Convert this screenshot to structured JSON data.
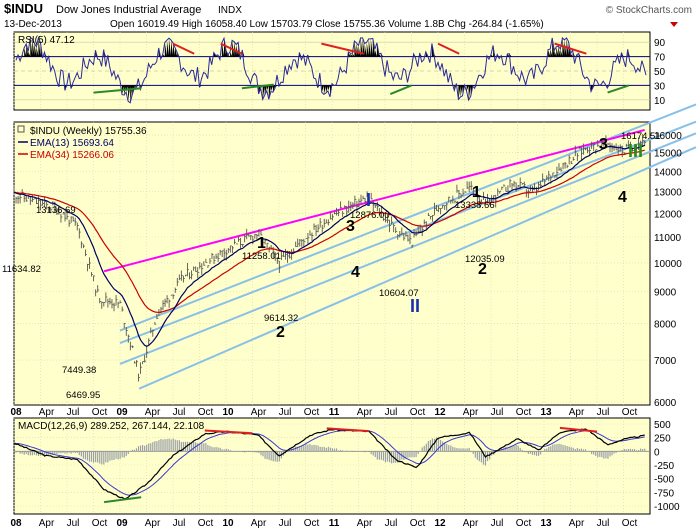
{
  "header": {
    "symbol": "$INDU",
    "name": "Dow Jones Industrial Average",
    "exchange": "INDX",
    "date": "13-Dec-2013",
    "quote": "Open 16019.49  High 16058.40  Low 15703.79  Close 15755.36  Volume 1.8B  Chg -264.84 (-1.65%)",
    "watermark": "© StockCharts.com"
  },
  "colors": {
    "panel_bg": "#ffffcc",
    "price": "#555555",
    "ema13": "#000066",
    "ema34": "#cc0000",
    "channel": "#88c0e8",
    "trendline": "#ff00ff",
    "rsi_line": "#2a2a9a",
    "wave_label": "#000000",
    "wave_major": "#1a2fb0",
    "wave_top": "#2a8a1a",
    "divergence_red": "#e02020",
    "divergence_green": "#2a8a2a",
    "macd_line": "#000000",
    "macd_signal": "#3a3ad0",
    "macd_hist": "#9aa0aa"
  },
  "rsi_panel": {
    "label": "RSI(5) 47.12",
    "ticks": [
      "90",
      "70",
      "50",
      "30",
      "10"
    ]
  },
  "price_panel": {
    "legend": [
      {
        "label": "$INDU (Weekly) 15755.36"
      },
      {
        "label": "EMA(13) 15693.64"
      },
      {
        "label": "EMA(34) 15266.06"
      }
    ],
    "y_ticks": [
      "16000",
      "15000",
      "14000",
      "13000",
      "12000",
      "11000",
      "10000",
      "9000",
      "8000",
      "7000",
      "6000"
    ],
    "price_labels": [
      {
        "text": "13136.69"
      },
      {
        "text": "11634.82"
      },
      {
        "text": "7449.38"
      },
      {
        "text": "6469.95"
      },
      {
        "text": "11258.01"
      },
      {
        "text": "9614.32"
      },
      {
        "text": "12876.00"
      },
      {
        "text": "10604.07"
      },
      {
        "text": "13338.66"
      },
      {
        "text": "12035.09"
      },
      {
        "text": "16174.51"
      }
    ],
    "wave_labels": [
      {
        "text": "1"
      },
      {
        "text": "2"
      },
      {
        "text": "3"
      },
      {
        "text": "4"
      },
      {
        "text": "I"
      },
      {
        "text": "II"
      },
      {
        "text": "1"
      },
      {
        "text": "2"
      },
      {
        "text": "3"
      },
      {
        "text": "4"
      },
      {
        "text": "III"
      }
    ]
  },
  "macd_panel": {
    "label": "MACD(12,26,9) 289.252, 267.144, 22.108",
    "ticks": [
      "500",
      "250",
      "0",
      "-250",
      "-500",
      "-750",
      "-1000"
    ]
  },
  "x_axis": {
    "labels": [
      "08",
      "Apr",
      "Jul",
      "Oct",
      "09",
      "Apr",
      "Jul",
      "Oct",
      "10",
      "Apr",
      "Jul",
      "Oct",
      "11",
      "Apr",
      "Jul",
      "Oct",
      "12",
      "Apr",
      "Jul",
      "Oct",
      "13",
      "Apr",
      "Jul",
      "Oct"
    ]
  },
  "chart_data": {
    "type": "line",
    "title": "$INDU Dow Jones Industrial Average INDX",
    "scale": "log",
    "ylim": [
      6000,
      16500
    ],
    "x_range": [
      "2008-01",
      "2013-12"
    ],
    "series": [
      {
        "name": "$INDU (Weekly)",
        "x": [
          2008.0,
          2008.2,
          2008.4,
          2008.6,
          2008.8,
          2009.0,
          2009.18,
          2009.35,
          2009.6,
          2009.8,
          2010.0,
          2010.3,
          2010.5,
          2010.75,
          2011.0,
          2011.33,
          2011.6,
          2011.75,
          2012.0,
          2012.3,
          2012.45,
          2012.7,
          2012.9,
          2013.1,
          2013.4,
          2013.6,
          2013.75,
          2013.95
        ],
        "values": [
          12900,
          12500,
          12200,
          11400,
          8800,
          8600,
          6600,
          8300,
          9500,
          10000,
          10500,
          11150,
          10000,
          11000,
          11900,
          12700,
          11300,
          10800,
          12300,
          13200,
          12400,
          13400,
          12950,
          14000,
          15300,
          15500,
          15100,
          15755
        ]
      },
      {
        "name": "EMA(13)",
        "last": 15693.64
      },
      {
        "name": "EMA(34)",
        "last": 15266.06
      }
    ],
    "rsi": {
      "period": 5,
      "last": 47.12,
      "levels": [
        10,
        30,
        50,
        70,
        90
      ]
    },
    "macd": {
      "params": [
        12,
        26,
        9
      ],
      "macd": 289.252,
      "signal": 267.144,
      "histogram": 22.108,
      "ylim": [
        -1000,
        500
      ]
    }
  }
}
